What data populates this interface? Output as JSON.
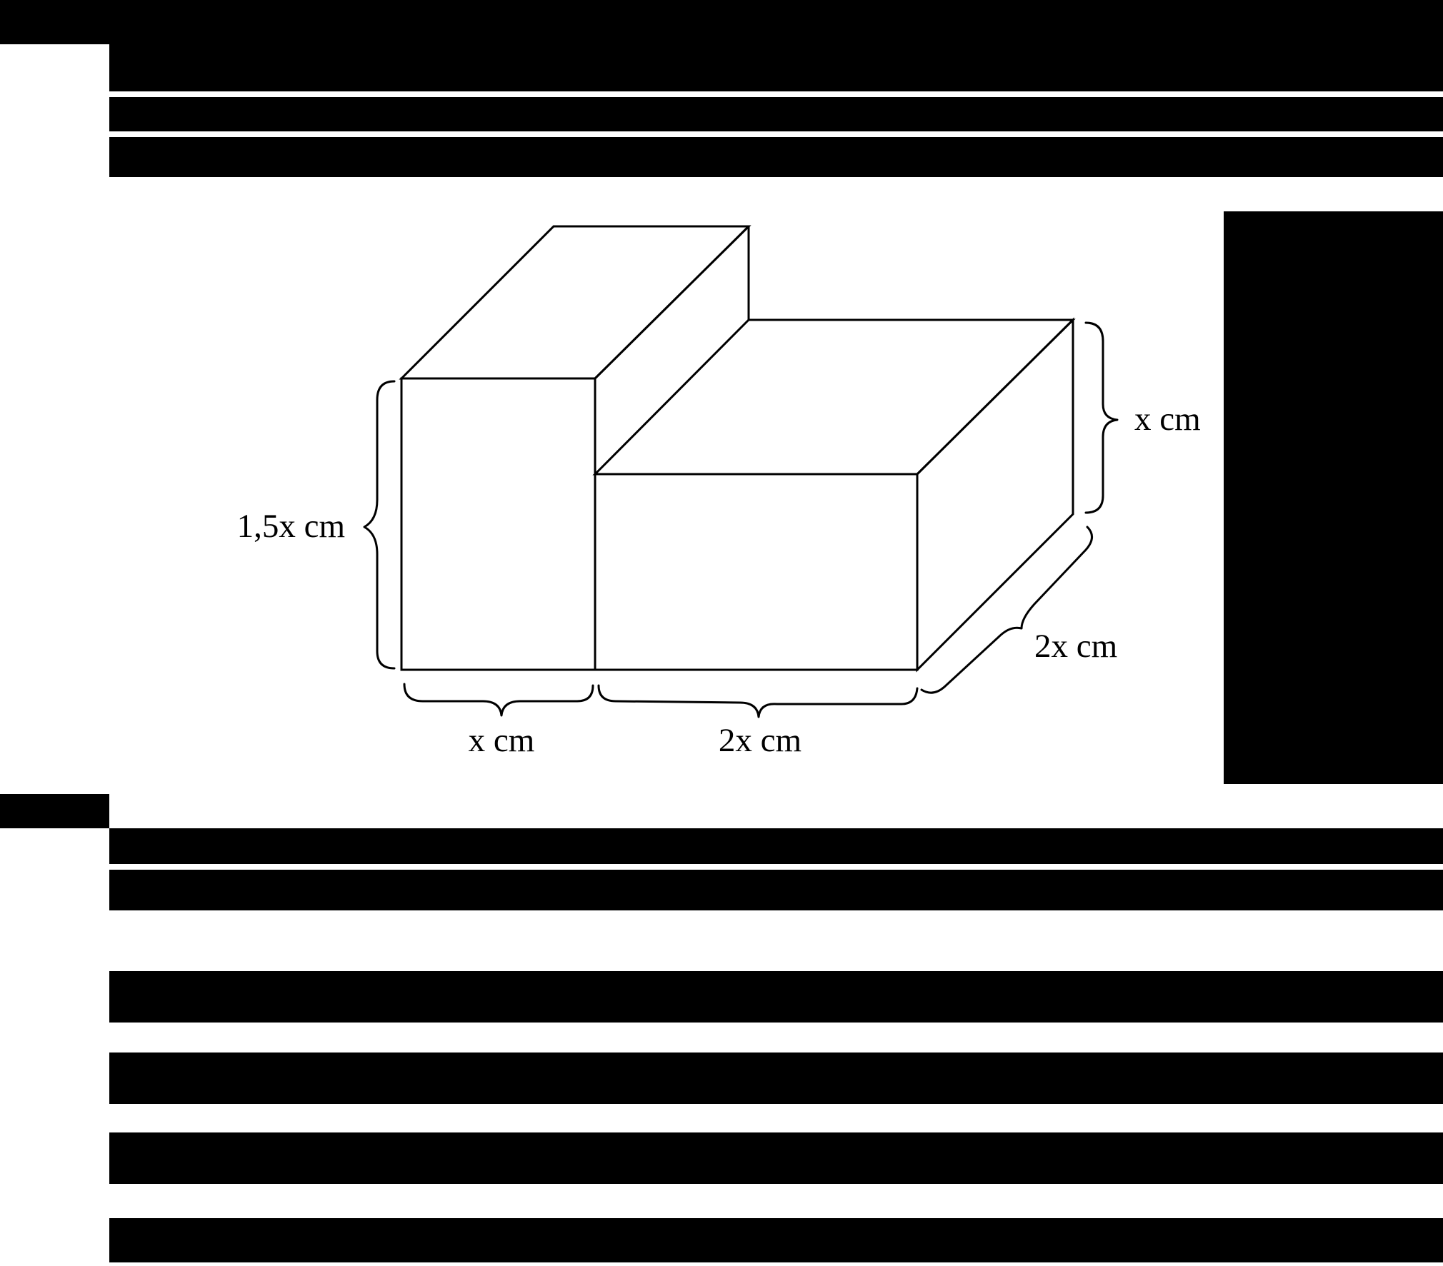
{
  "diagram": {
    "labels": {
      "left_block_height": "1,5x cm",
      "left_block_width": "x cm",
      "right_block_width": "2x cm",
      "right_block_height": "x cm",
      "depth": "2x cm"
    }
  },
  "colors": {
    "background_redaction": "#000000",
    "figure_background": "#ffffff",
    "line": "#000000",
    "text": "#000000"
  }
}
